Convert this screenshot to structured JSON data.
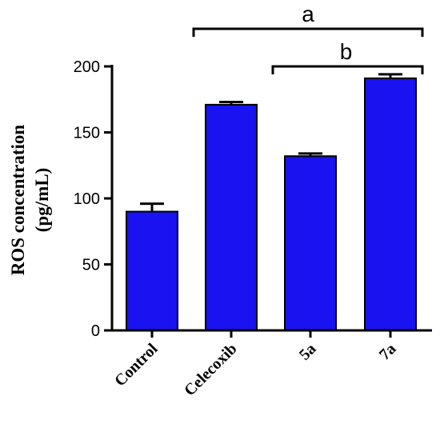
{
  "chart_data": {
    "type": "bar",
    "categories": [
      "Control",
      "Celecoxib",
      "5a",
      "7a"
    ],
    "values": [
      90,
      171,
      132,
      191
    ],
    "errors": [
      6,
      2,
      2,
      3
    ],
    "ylabel_line1": "ROS concentration",
    "ylabel_line2": "(pg/mL)",
    "ylim": [
      0,
      200
    ],
    "yticks": [
      0,
      50,
      100,
      150,
      200
    ],
    "bar_color": "#1a12f0",
    "bar_edge_color": "#000000",
    "grid": false,
    "significance": [
      {
        "label": "a",
        "from": "Celecoxib",
        "to": "7a"
      },
      {
        "label": "b",
        "from": "5a",
        "to": "7a"
      }
    ]
  }
}
